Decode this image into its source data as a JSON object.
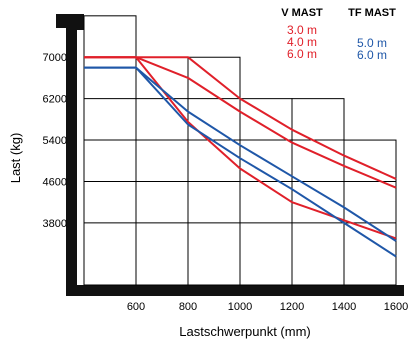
{
  "chart_data": {
    "type": "line",
    "xlabel": "Lastschwerpunkt (mm)",
    "ylabel": "Last (kg)",
    "xlim": [
      400,
      1600
    ],
    "ylim": [
      2600,
      7700
    ],
    "x_ticks": [
      600,
      800,
      1000,
      1200,
      1400,
      1600
    ],
    "y_ticks": [
      3800,
      4600,
      5400,
      6200,
      7000
    ],
    "colors": {
      "v_mast": "#e0202a",
      "tf_mast": "#1f57a8",
      "frame": "#111111"
    },
    "legend": {
      "groups": [
        {
          "title": "V MAST",
          "items": [
            "3.0 m",
            "4.0 m",
            "6.0 m"
          ],
          "color": "#e0202a"
        },
        {
          "title": "TF MAST",
          "items": [
            "5.0 m",
            "6.0 m"
          ],
          "color": "#1f57a8"
        }
      ]
    },
    "series": [
      {
        "group": "V MAST",
        "mast": "3.0 m",
        "x": [
          400,
          600,
          800,
          1000,
          1200,
          1400,
          1600
        ],
        "y": [
          7000,
          7000,
          7000,
          6200,
          5600,
          5100,
          4650
        ]
      },
      {
        "group": "V MAST",
        "mast": "4.0 m",
        "x": [
          400,
          600,
          800,
          1000,
          1200,
          1400,
          1600
        ],
        "y": [
          7000,
          7000,
          6600,
          5950,
          5350,
          4900,
          4480
        ]
      },
      {
        "group": "V MAST",
        "mast": "6.0 m",
        "x": [
          400,
          600,
          800,
          1000,
          1200,
          1400,
          1600
        ],
        "y": [
          7000,
          7000,
          5750,
          4850,
          4200,
          3850,
          3500
        ]
      },
      {
        "group": "TF MAST",
        "mast": "5.0 m",
        "x": [
          400,
          600,
          800,
          1000,
          1200,
          1400,
          1600
        ],
        "y": [
          6800,
          6800,
          5950,
          5300,
          4700,
          4100,
          3450
        ]
      },
      {
        "group": "TF MAST",
        "mast": "6.0 m",
        "x": [
          400,
          600,
          800,
          1000,
          1200,
          1400,
          1600
        ],
        "y": [
          6800,
          6800,
          5700,
          5050,
          4450,
          3800,
          3150
        ]
      }
    ],
    "grid_rectangles": [
      {
        "x_from": 400,
        "x_to": 600,
        "top_y": 7800
      },
      {
        "x_from": 600,
        "x_to": 800,
        "top_y": 7000
      },
      {
        "x_from": 800,
        "x_to": 1000,
        "top_y": 7000
      },
      {
        "x_from": 1000,
        "x_to": 1200,
        "top_y": 6200
      },
      {
        "x_from": 1200,
        "x_to": 1400,
        "top_y": 6200
      },
      {
        "x_from": 1400,
        "x_to": 1600,
        "top_y": 5400
      }
    ]
  }
}
